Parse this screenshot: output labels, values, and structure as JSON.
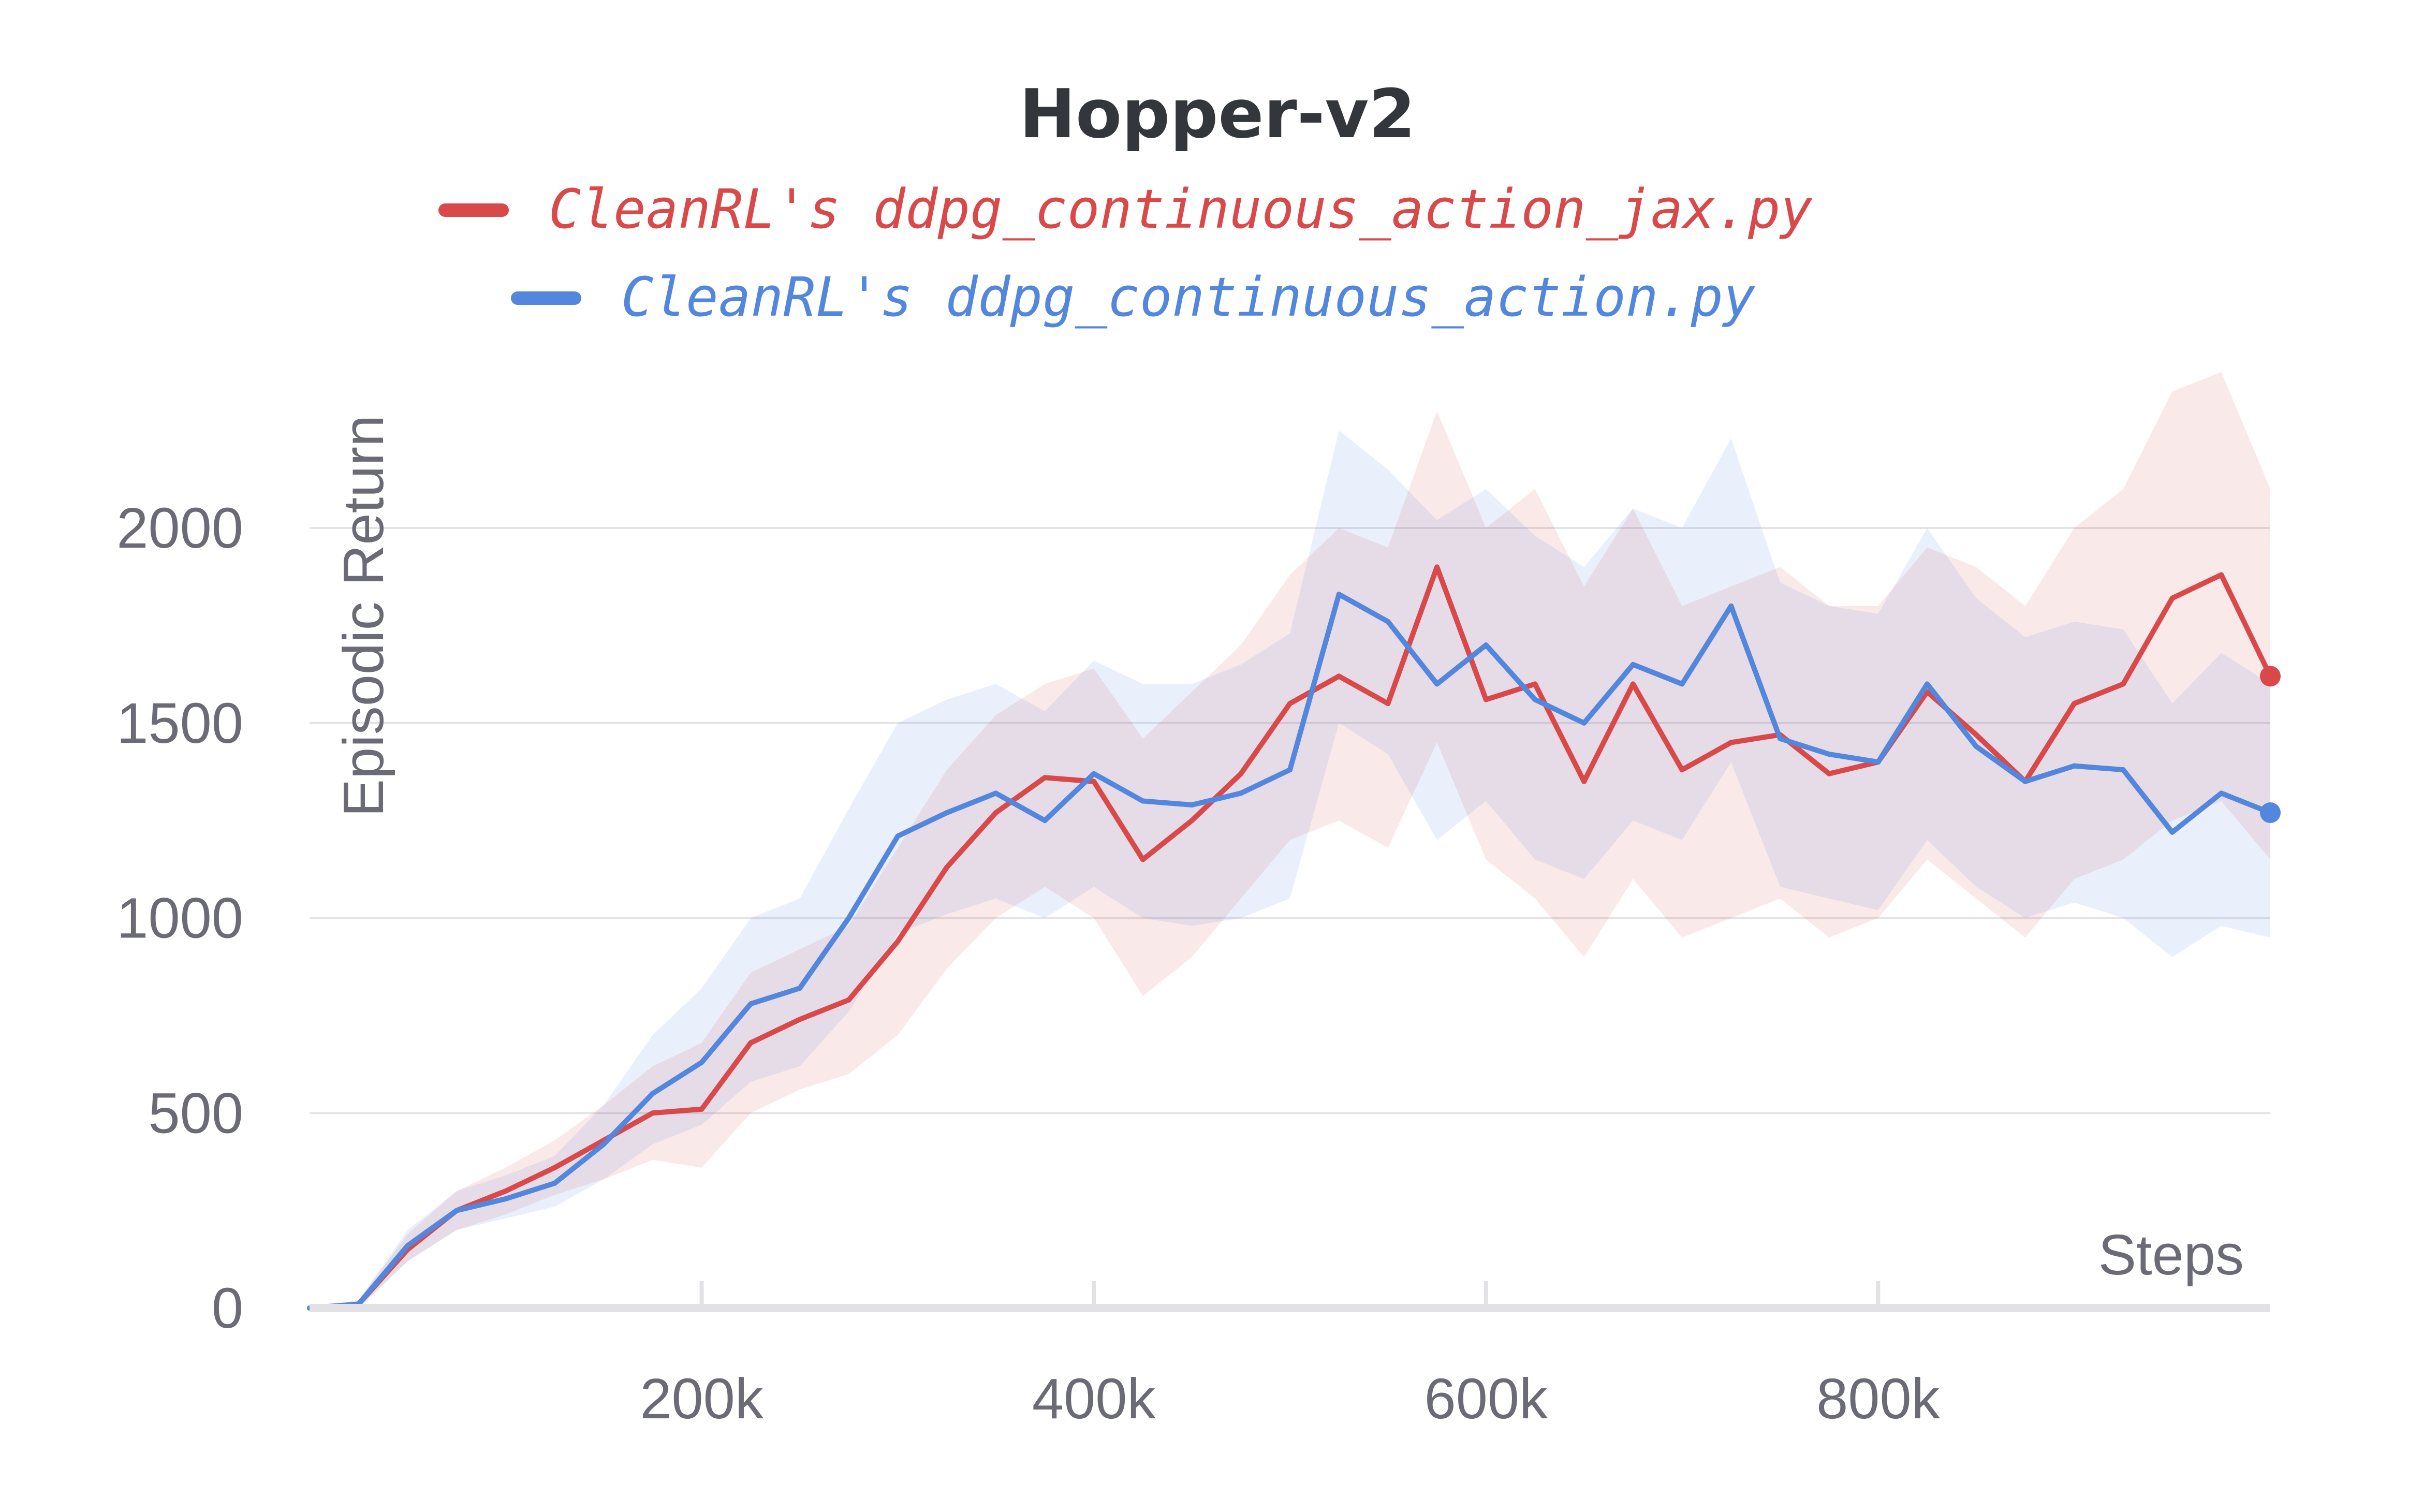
{
  "chart_data": {
    "type": "line",
    "title": "Hopper-v2",
    "xlabel": "Steps",
    "ylabel": "Episodic Return",
    "xlim": [
      0,
      1000000
    ],
    "ylim": [
      0,
      2300
    ],
    "x_ticks": [
      200000,
      400000,
      600000,
      800000
    ],
    "x_tick_labels": [
      "200k",
      "400k",
      "600k",
      "800k"
    ],
    "y_ticks": [
      0,
      500,
      1000,
      1500,
      2000
    ],
    "y_tick_labels": [
      "0",
      "500",
      "1000",
      "1500",
      "2000"
    ],
    "grid": "horizontal",
    "legend_position": "top",
    "shaded_band": "min-max range per series",
    "series": [
      {
        "name": "CleanRL's ddpg_continuous_action_jax.py",
        "color": "#d9494a",
        "x": [
          0,
          25000,
          50000,
          75000,
          100000,
          125000,
          150000,
          175000,
          200000,
          225000,
          250000,
          275000,
          300000,
          325000,
          350000,
          375000,
          400000,
          425000,
          450000,
          475000,
          500000,
          525000,
          550000,
          575000,
          600000,
          625000,
          650000,
          675000,
          700000,
          725000,
          750000,
          775000,
          800000,
          825000,
          850000,
          875000,
          900000,
          925000,
          950000,
          975000,
          1000000
        ],
        "values": [
          0,
          10,
          150,
          250,
          300,
          360,
          430,
          500,
          510,
          680,
          740,
          790,
          940,
          1130,
          1270,
          1360,
          1350,
          1150,
          1250,
          1370,
          1550,
          1620,
          1550,
          1900,
          1560,
          1600,
          1350,
          1600,
          1380,
          1450,
          1470,
          1370,
          1400,
          1580,
          1470,
          1350,
          1550,
          1600,
          1820,
          1880,
          1620
        ],
        "lower": [
          0,
          0,
          120,
          200,
          240,
          290,
          330,
          380,
          360,
          500,
          560,
          600,
          700,
          870,
          1000,
          1080,
          1000,
          800,
          900,
          1050,
          1200,
          1250,
          1180,
          1450,
          1150,
          1050,
          900,
          1100,
          950,
          1000,
          1050,
          950,
          1000,
          1150,
          1050,
          950,
          1100,
          1150,
          1250,
          1300,
          1150
        ],
        "upper": [
          0,
          20,
          190,
          300,
          360,
          430,
          520,
          620,
          680,
          860,
          920,
          980,
          1180,
          1380,
          1520,
          1600,
          1640,
          1460,
          1580,
          1700,
          1880,
          2000,
          1950,
          2300,
          2000,
          2100,
          1850,
          2050,
          1800,
          1850,
          1900,
          1800,
          1800,
          1950,
          1900,
          1800,
          2000,
          2100,
          2350,
          2400,
          2100
        ]
      },
      {
        "name": "CleanRL's ddpg_continuous_action.py",
        "color": "#5387dd",
        "x": [
          0,
          25000,
          50000,
          75000,
          100000,
          125000,
          150000,
          175000,
          200000,
          225000,
          250000,
          275000,
          300000,
          325000,
          350000,
          375000,
          400000,
          425000,
          450000,
          475000,
          500000,
          525000,
          550000,
          575000,
          600000,
          625000,
          650000,
          675000,
          700000,
          725000,
          750000,
          775000,
          800000,
          825000,
          850000,
          875000,
          900000,
          925000,
          950000,
          975000,
          1000000
        ],
        "values": [
          0,
          10,
          160,
          250,
          280,
          320,
          420,
          550,
          630,
          780,
          820,
          1000,
          1210,
          1270,
          1320,
          1250,
          1370,
          1300,
          1290,
          1320,
          1380,
          1830,
          1760,
          1600,
          1700,
          1560,
          1500,
          1650,
          1600,
          1800,
          1460,
          1420,
          1400,
          1600,
          1440,
          1350,
          1390,
          1380,
          1220,
          1320,
          1270
        ],
        "lower": [
          0,
          0,
          120,
          200,
          230,
          260,
          330,
          420,
          470,
          580,
          620,
          760,
          960,
          1010,
          1050,
          1000,
          1080,
          1000,
          980,
          1000,
          1050,
          1500,
          1420,
          1200,
          1300,
          1150,
          1100,
          1250,
          1200,
          1400,
          1080,
          1050,
          1020,
          1200,
          1080,
          1000,
          1040,
          1000,
          900,
          980,
          950
        ],
        "upper": [
          0,
          20,
          200,
          300,
          340,
          390,
          520,
          700,
          820,
          1000,
          1050,
          1280,
          1500,
          1560,
          1600,
          1530,
          1660,
          1600,
          1600,
          1650,
          1730,
          2250,
          2150,
          2020,
          2100,
          1980,
          1900,
          2050,
          2000,
          2230,
          1860,
          1800,
          1780,
          2000,
          1820,
          1720,
          1760,
          1740,
          1550,
          1680,
          1600
        ]
      }
    ]
  }
}
